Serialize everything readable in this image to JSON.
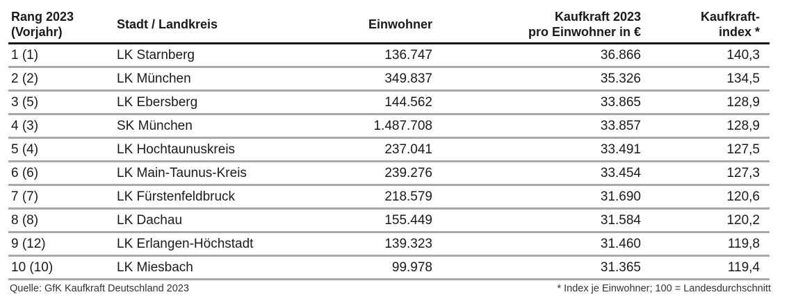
{
  "table": {
    "headers": {
      "rank_line1": "Rang 2023",
      "rank_line2": "(Vorjahr)",
      "city": "Stadt / Landkreis",
      "population": "Einwohner",
      "kaufkraft_line1": "Kaufkraft 2023",
      "kaufkraft_line2": "pro Einwohner in €",
      "index_line1": "Kaufkraft-",
      "index_line2": "index *"
    },
    "rows": [
      {
        "rank": "1 (1)",
        "city": "LK Starnberg",
        "population": "136.747",
        "kaufkraft": "36.866",
        "index": "140,3"
      },
      {
        "rank": "2 (2)",
        "city": "LK München",
        "population": "349.837",
        "kaufkraft": "35.326",
        "index": "134,5"
      },
      {
        "rank": "3 (5)",
        "city": "LK Ebersberg",
        "population": "144.562",
        "kaufkraft": "33.865",
        "index": "128,9"
      },
      {
        "rank": "4 (3)",
        "city": "SK München",
        "population": "1.487.708",
        "kaufkraft": "33.857",
        "index": "128,9"
      },
      {
        "rank": "5 (4)",
        "city": "LK Hochtaunuskreis",
        "population": "237.041",
        "kaufkraft": "33.491",
        "index": "127,5"
      },
      {
        "rank": "6 (6)",
        "city": "LK Main-Taunus-Kreis",
        "population": "239.276",
        "kaufkraft": "33.454",
        "index": "127,3"
      },
      {
        "rank": "7 (7)",
        "city": "LK Fürstenfeldbruck",
        "population": "218.579",
        "kaufkraft": "31.690",
        "index": "120,6"
      },
      {
        "rank": "8 (8)",
        "city": "LK Dachau",
        "population": "155.449",
        "kaufkraft": "31.584",
        "index": "120,2"
      },
      {
        "rank": "9 (12)",
        "city": "LK Erlangen-Höchstadt",
        "population": "139.323",
        "kaufkraft": "31.460",
        "index": "119,8"
      },
      {
        "rank": "10 (10)",
        "city": "LK Miesbach",
        "population": "99.978",
        "kaufkraft": "31.365",
        "index": "119,4"
      }
    ]
  },
  "footer": {
    "source": "Quelle: GfK Kaufkraft Deutschland 2023",
    "note": "* Index je Einwohner; 100 = Landesdurchschnitt"
  }
}
